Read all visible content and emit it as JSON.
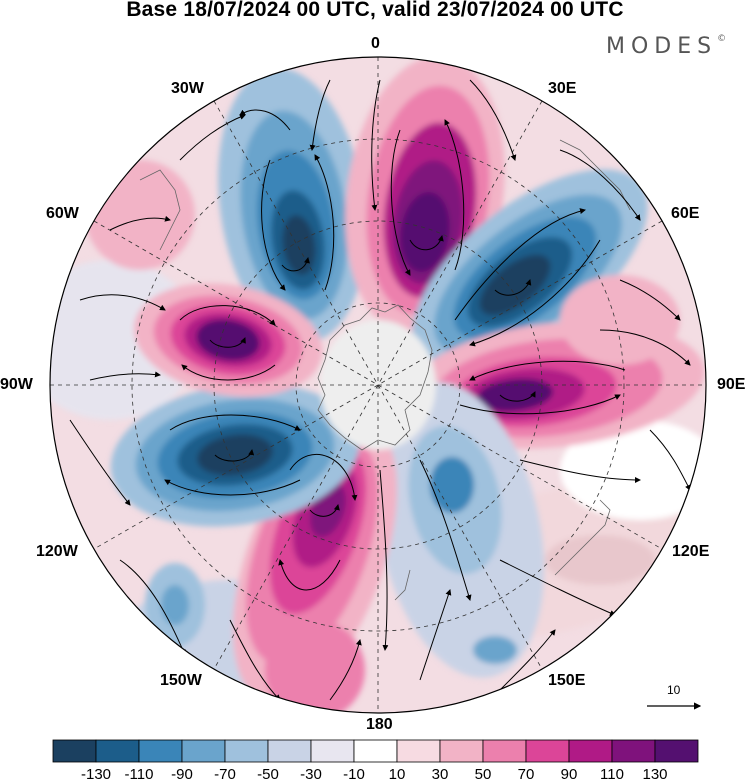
{
  "title": "Base 18/07/2024 00 UTC, valid 23/07/2024 00 UTC",
  "brand": "MODES",
  "brand_mark": "©",
  "longitude_labels": {
    "n": "0",
    "ne30": "30E",
    "ne60": "60E",
    "e": "90E",
    "se120": "120E",
    "se150": "150E",
    "s": "180",
    "sw150": "150W",
    "sw120": "120W",
    "w": "90W",
    "nw60": "60W",
    "nw30": "30W"
  },
  "vector_reference": {
    "label": "10"
  },
  "colorbar": {
    "ticks": [
      "-130",
      "-110",
      "-90",
      "-70",
      "-50",
      "-30",
      "-10",
      "10",
      "30",
      "50",
      "70",
      "90",
      "110",
      "130"
    ],
    "colors": [
      "#1b4060",
      "#1c5d8a",
      "#3a85b8",
      "#6aa4cc",
      "#9fc1dd",
      "#c9d3e6",
      "#e8e6f0",
      "#ffffff",
      "#f7dbe2",
      "#f2b3c6",
      "#ec80ad",
      "#dc4598",
      "#b01a86",
      "#7f127c",
      "#541070"
    ]
  }
}
